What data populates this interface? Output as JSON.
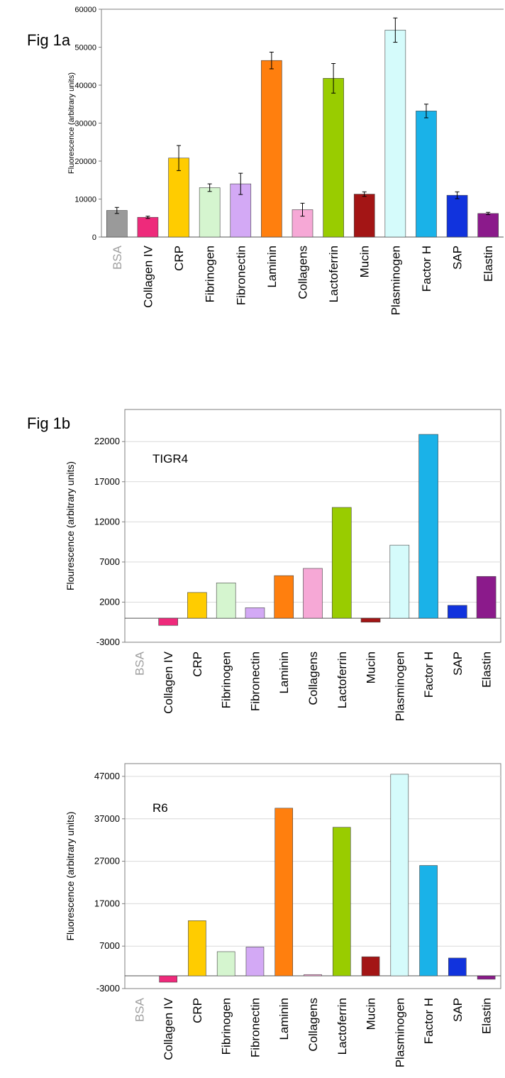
{
  "figures": {
    "fig1a_label": "Fig 1a",
    "fig1b_label": "Fig 1b"
  },
  "chart_data": [
    {
      "type": "bar",
      "title": "",
      "ylabel": "Fluorescence (arbitrary units)",
      "xlabel": "",
      "ylim": [
        0,
        60000
      ],
      "yticks": [
        0,
        10000,
        20000,
        30000,
        40000,
        50000,
        60000
      ],
      "grid": false,
      "error_bars": true,
      "categories": [
        "BSA",
        "Collagen IV",
        "CRP",
        "Fibrinogen",
        "Fibronectin",
        "Laminin",
        "Collagens",
        "Lactoferrin",
        "Mucin",
        "Plasminogen",
        "Factor H",
        "SAP",
        "Elastin"
      ],
      "values": [
        7000,
        5200,
        20800,
        13000,
        14000,
        46500,
        7200,
        41800,
        11300,
        54500,
        33200,
        11000,
        6200
      ],
      "errors": [
        800,
        300,
        3300,
        1000,
        2800,
        2200,
        1700,
        3900,
        600,
        3200,
        1800,
        900,
        300
      ]
    },
    {
      "type": "bar",
      "title": "",
      "annotation": "TIGR4",
      "ylabel": "Flourescence (arbitrary units)",
      "xlabel": "",
      "ylim": [
        -3000,
        26000
      ],
      "yticks": [
        -3000,
        2000,
        7000,
        12000,
        17000,
        22000
      ],
      "grid": true,
      "categories": [
        "BSA",
        "Collagen IV",
        "CRP",
        "Fibrinogen",
        "Fibronectin",
        "Laminin",
        "Collagens",
        "Lactoferrin",
        "Mucin",
        "Plasminogen",
        "Factor H",
        "SAP",
        "Elastin"
      ],
      "values": [
        0,
        -900,
        3200,
        4400,
        1300,
        5300,
        6200,
        13800,
        -500,
        9100,
        22900,
        1600,
        5200
      ]
    },
    {
      "type": "bar",
      "title": "",
      "annotation": "R6",
      "ylabel": "Fluorescence (arbitrary units)",
      "xlabel": "",
      "ylim": [
        -3000,
        50000
      ],
      "yticks": [
        -3000,
        7000,
        17000,
        27000,
        37000,
        47000
      ],
      "grid": true,
      "categories": [
        "BSA",
        "Collagen IV",
        "CRP",
        "Fibrinogen",
        "Fibronectin",
        "Laminin",
        "Collagens",
        "Lactoferrin",
        "Mucin",
        "Plasminogen",
        "Factor H",
        "SAP",
        "Elastin"
      ],
      "values": [
        0,
        -1500,
        13000,
        5700,
        6800,
        39500,
        300,
        35000,
        4500,
        47500,
        26000,
        4200,
        -800
      ]
    }
  ],
  "colors": {
    "bars": [
      "#9a9a9a",
      "#ee2a7b",
      "#ffcc00",
      "#d5f5cf",
      "#d3a9f5",
      "#ff7f0e",
      "#f6a8d6",
      "#99cc00",
      "#a31515",
      "#d5fbfb",
      "#1ab2e8",
      "#1133dd",
      "#8b1a8b"
    ],
    "bsa_label": "#a0a0a0",
    "axis": "#7f7f7f",
    "grid": "#d9d9d9"
  }
}
